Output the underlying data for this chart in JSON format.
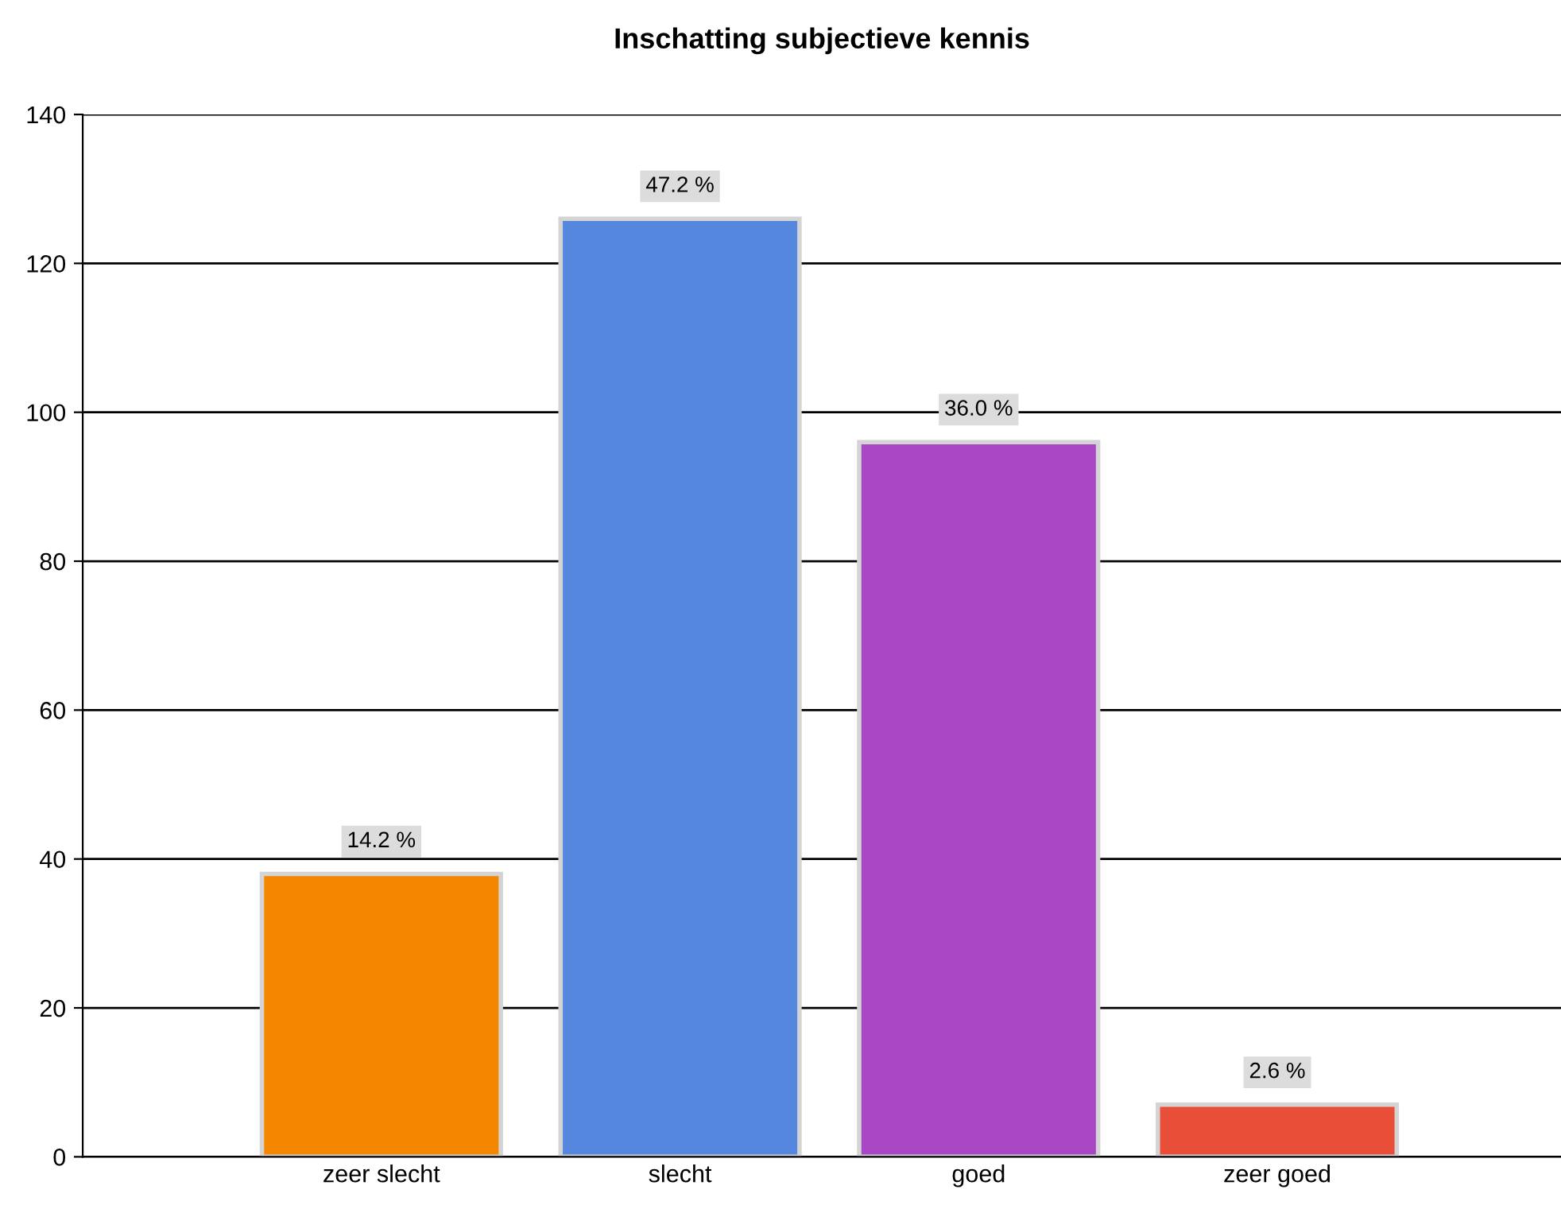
{
  "chart_data": {
    "type": "bar",
    "title": "Inschatting subjectieve kennis",
    "categories": [
      "zeer slecht",
      "slecht",
      "goed",
      "zeer goed"
    ],
    "values": [
      38,
      126,
      96,
      7
    ],
    "colors": [
      "#f58600",
      "#5587df",
      "#a946c4",
      "#e84e38"
    ],
    "annotations": [
      {
        "text": "14.2 %",
        "x": "zeer slecht",
        "y": 38
      },
      {
        "text": "47.2 %",
        "x": "slecht",
        "y": 126
      },
      {
        "text": "36.0 %",
        "x": "goed",
        "y": 96
      },
      {
        "text": "2.6 %",
        "x": "zeer goed",
        "y": 7
      }
    ],
    "ylim": [
      0,
      140
    ],
    "yticks": [
      0,
      20,
      40,
      60,
      80,
      100,
      120,
      140
    ],
    "grid": "y"
  }
}
